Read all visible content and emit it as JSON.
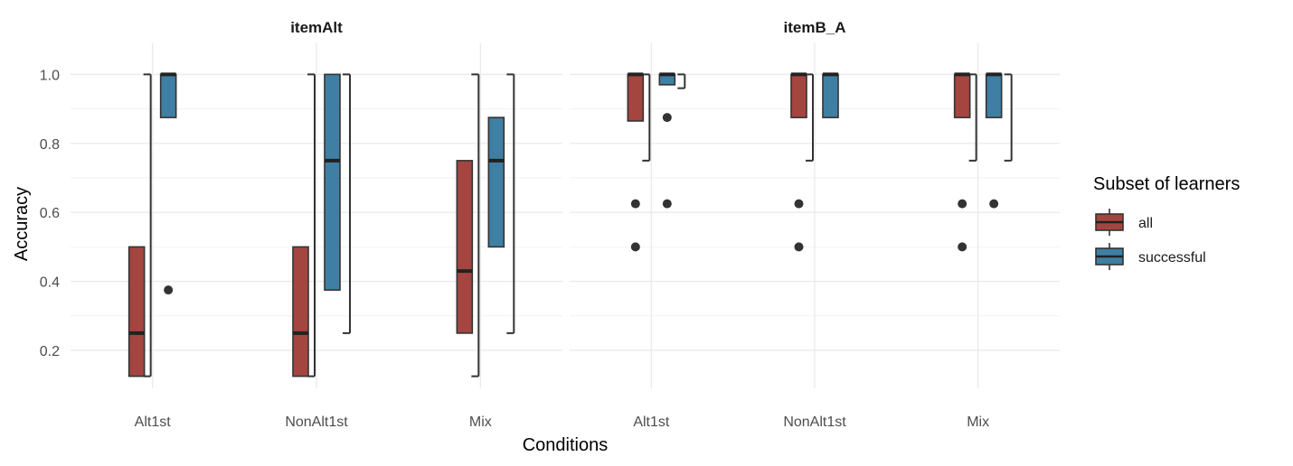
{
  "chart_data": {
    "type": "boxplot",
    "xlabel": "Conditions",
    "ylabel": "Accuracy",
    "ylim": [
      0.09,
      1.09
    ],
    "yticks": [
      "0.2",
      "0.4",
      "0.6",
      "0.8",
      "1.0"
    ],
    "categories": [
      "Alt1st",
      "NonAlt1st",
      "Mix"
    ],
    "legend": {
      "title": "Subset of learners",
      "position": "right",
      "entries": [
        {
          "key": "all",
          "label": "all",
          "color": "#a5453f"
        },
        {
          "key": "successful",
          "label": "successful",
          "color": "#3f7fa3"
        }
      ]
    },
    "grid": true,
    "facets": [
      {
        "title": "itemAlt",
        "groups": [
          {
            "category": "Alt1st",
            "all": {
              "lower": 0.125,
              "q1": 0.125,
              "median": 0.25,
              "q3": 0.5,
              "upper": 1.0,
              "outliers": []
            },
            "successful": {
              "lower": 0.875,
              "q1": 0.875,
              "median": 1.0,
              "q3": 1.0,
              "upper": 1.0,
              "outliers": [
                0.375
              ]
            }
          },
          {
            "category": "NonAlt1st",
            "all": {
              "lower": 0.125,
              "q1": 0.125,
              "median": 0.25,
              "q3": 0.5,
              "upper": 1.0,
              "outliers": []
            },
            "successful": {
              "lower": 0.25,
              "q1": 0.375,
              "median": 0.75,
              "q3": 1.0,
              "upper": 1.0,
              "outliers": []
            }
          },
          {
            "category": "Mix",
            "all": {
              "lower": 0.125,
              "q1": 0.25,
              "median": 0.43,
              "q3": 0.75,
              "upper": 1.0,
              "outliers": []
            },
            "successful": {
              "lower": 0.25,
              "q1": 0.5,
              "median": 0.75,
              "q3": 0.875,
              "upper": 1.0,
              "outliers": []
            }
          }
        ]
      },
      {
        "title": "itemB_A",
        "groups": [
          {
            "category": "Alt1st",
            "all": {
              "lower": 0.75,
              "q1": 0.865,
              "median": 1.0,
              "q3": 1.0,
              "upper": 1.0,
              "outliers": [
                0.625,
                0.5
              ]
            },
            "successful": {
              "lower": 0.96,
              "q1": 0.97,
              "median": 1.0,
              "q3": 1.0,
              "upper": 1.0,
              "outliers": [
                0.875,
                0.625
              ]
            }
          },
          {
            "category": "NonAlt1st",
            "all": {
              "lower": 0.75,
              "q1": 0.875,
              "median": 1.0,
              "q3": 1.0,
              "upper": 1.0,
              "outliers": [
                0.625,
                0.5
              ]
            },
            "successful": {
              "lower": 0.875,
              "q1": 0.875,
              "median": 1.0,
              "q3": 1.0,
              "upper": 1.0,
              "outliers": []
            }
          },
          {
            "category": "Mix",
            "all": {
              "lower": 0.75,
              "q1": 0.875,
              "median": 1.0,
              "q3": 1.0,
              "upper": 1.0,
              "outliers": [
                0.625,
                0.5
              ]
            },
            "successful": {
              "lower": 0.75,
              "q1": 0.875,
              "median": 1.0,
              "q3": 1.0,
              "upper": 1.0,
              "outliers": [
                0.625
              ]
            }
          }
        ]
      }
    ]
  }
}
